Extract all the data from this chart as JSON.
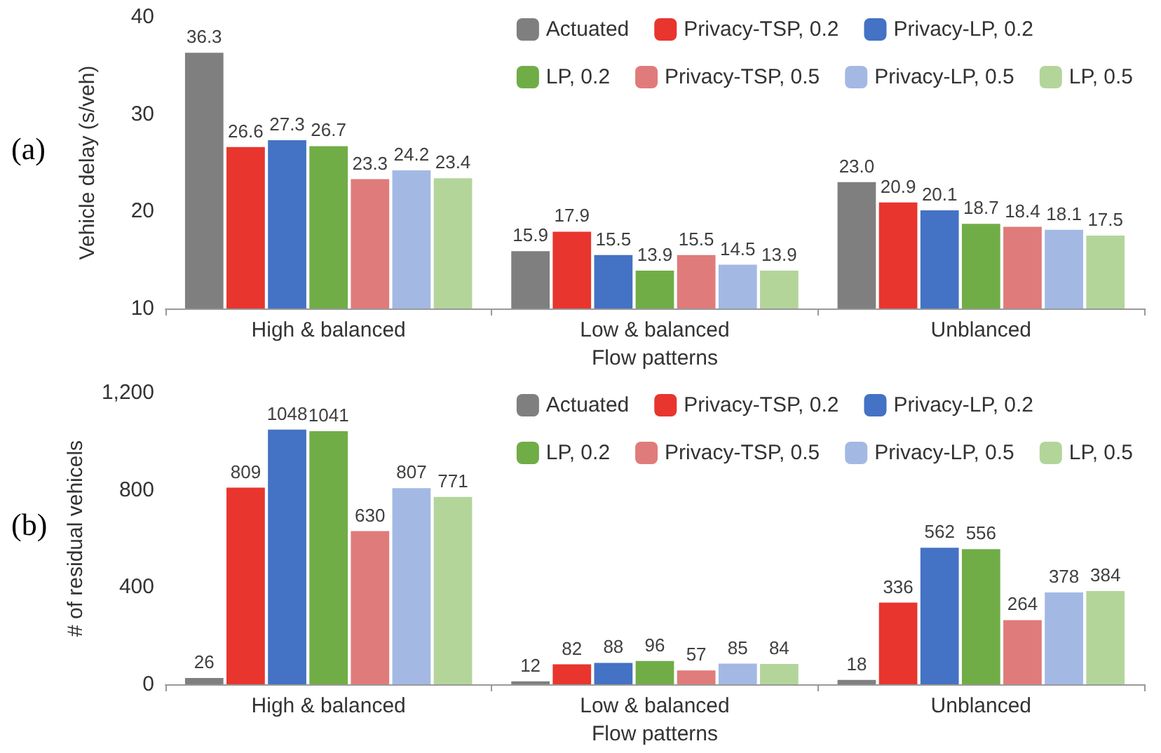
{
  "chart_data": [
    {
      "type": "bar",
      "xlabel": "Flow patterns",
      "ylabel": "Vehicle delay (s/veh)",
      "annotations": [
        "(a)"
      ],
      "categories": [
        "High & balanced",
        "Low & balanced",
        "Unblanced"
      ],
      "ylim": [
        10,
        40
      ],
      "yticks": [
        10,
        20,
        30,
        40
      ],
      "grid": false,
      "legend": "top right",
      "series": [
        {
          "name": "Actuated",
          "color": "#7f7f7f",
          "values": [
            36.3,
            15.9,
            23.0
          ],
          "value_labels": [
            "36.3",
            "15.9",
            "23.0"
          ]
        },
        {
          "name": "Privacy-TSP, 0.2",
          "color": "#e8352e",
          "values": [
            26.6,
            17.9,
            20.9
          ],
          "value_labels": [
            "26.6",
            "17.9",
            "20.9"
          ]
        },
        {
          "name": "Privacy-LP, 0.2",
          "color": "#4472c4",
          "values": [
            27.3,
            15.5,
            20.1
          ],
          "value_labels": [
            "27.3",
            "15.5",
            "20.1"
          ]
        },
        {
          "name": "LP, 0.2",
          "color": "#70ad47",
          "values": [
            26.7,
            13.9,
            18.7
          ],
          "value_labels": [
            "26.7",
            "13.9",
            "18.7"
          ]
        },
        {
          "name": "Privacy-TSP, 0.5",
          "color": "#e07b7b",
          "values": [
            23.3,
            15.5,
            18.4
          ],
          "value_labels": [
            "23.3",
            "15.5",
            "18.4"
          ]
        },
        {
          "name": "Privacy-LP, 0.5",
          "color": "#a3b9e3",
          "values": [
            24.2,
            14.5,
            18.1
          ],
          "value_labels": [
            "24.2",
            "14.5",
            "18.1"
          ]
        },
        {
          "name": "LP, 0.5",
          "color": "#b3d59a",
          "values": [
            23.4,
            13.9,
            17.5
          ],
          "value_labels": [
            "23.4",
            "13.9",
            "17.5"
          ]
        }
      ]
    },
    {
      "type": "bar",
      "xlabel": "Flow patterns",
      "ylabel": "# of residual vehicels",
      "annotations": [
        "(b)"
      ],
      "categories": [
        "High & balanced",
        "Low & balanced",
        "Unblanced"
      ],
      "ylim": [
        0,
        1200
      ],
      "yticks": [
        0,
        400,
        800,
        {
          "value": 1200,
          "label": "1,200"
        }
      ],
      "grid": false,
      "legend": "top right",
      "data_labels": true,
      "series": [
        {
          "name": "Actuated",
          "color": "#7f7f7f",
          "values": [
            26,
            12,
            18
          ]
        },
        {
          "name": "Privacy-TSP, 0.2",
          "color": "#e8352e",
          "values": [
            809,
            82,
            336
          ]
        },
        {
          "name": "Privacy-LP, 0.2",
          "color": "#4472c4",
          "values": [
            1048,
            88,
            562
          ]
        },
        {
          "name": "LP, 0.2",
          "color": "#70ad47",
          "values": [
            1041,
            96,
            556
          ]
        },
        {
          "name": "Privacy-TSP, 0.5",
          "color": "#e07b7b",
          "values": [
            630,
            57,
            264
          ]
        },
        {
          "name": "Privacy-LP, 0.5",
          "color": "#a3b9e3",
          "values": [
            807,
            85,
            378
          ]
        },
        {
          "name": "LP, 0.5",
          "color": "#b3d59a",
          "values": [
            771,
            84,
            384
          ]
        }
      ]
    }
  ]
}
